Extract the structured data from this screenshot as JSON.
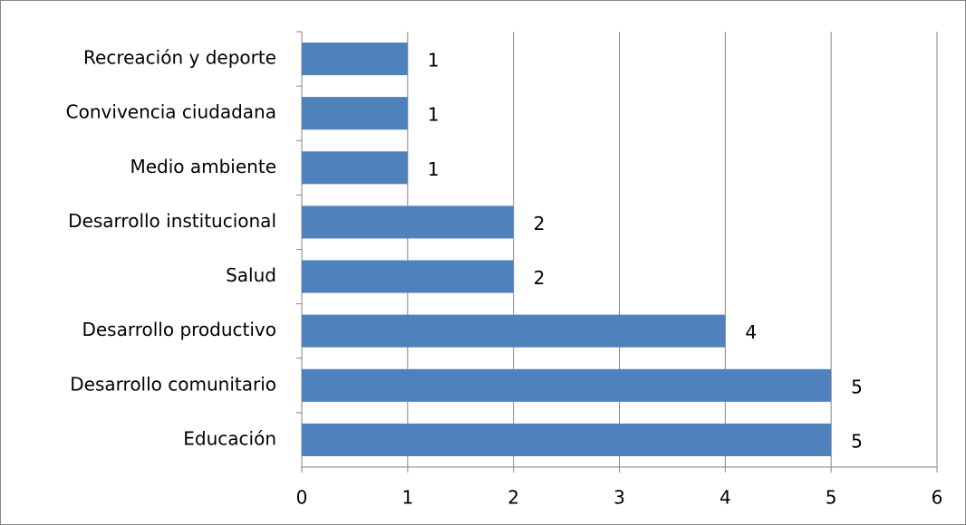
{
  "chart_data": {
    "type": "bar",
    "orientation": "horizontal",
    "categories": [
      "Recreación y deporte",
      "Convivencia ciudadana",
      "Medio ambiente",
      "Desarrollo institucional",
      "Salud",
      "Desarrollo productivo",
      "Desarrollo comunitario",
      "Educación"
    ],
    "values": [
      1,
      1,
      1,
      2,
      2,
      4,
      5,
      5
    ],
    "color": "#4f81bd",
    "xlim": [
      0,
      6
    ],
    "xticks": [
      0,
      1,
      2,
      3,
      4,
      5,
      6
    ],
    "grid": true
  }
}
